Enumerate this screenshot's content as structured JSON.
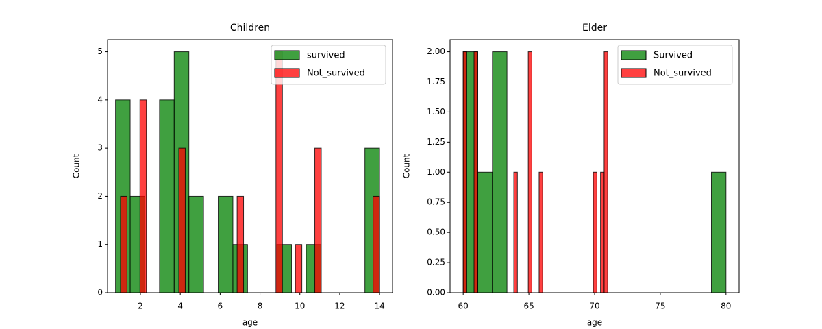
{
  "chart_data": [
    {
      "type": "histogram",
      "title": "Children",
      "xlabel": "age",
      "ylabel": "Count",
      "xlim": [
        0.35,
        14.65
      ],
      "ylim": [
        0,
        5.25
      ],
      "xticks": [
        2,
        4,
        6,
        8,
        10,
        12,
        14
      ],
      "yticks": [
        0,
        1,
        2,
        3,
        4,
        5
      ],
      "legend": "upper right",
      "series": [
        {
          "name": "survived",
          "color": "green",
          "bins": [
            0.75,
            1.486,
            2.222,
            2.958,
            3.694,
            4.431,
            5.167,
            5.903,
            6.639,
            7.375,
            8.111,
            8.847,
            9.583,
            10.319,
            11.056,
            11.792,
            12.528,
            13.264,
            14.0
          ],
          "values": [
            4,
            2,
            0,
            4,
            5,
            2,
            0,
            2,
            1,
            0,
            0,
            1,
            0,
            1,
            0,
            0,
            0,
            3
          ]
        },
        {
          "name": "Not_survived",
          "color": "red",
          "bins": [
            1,
            1.325,
            1.65,
            1.975,
            2.3,
            2.625,
            2.95,
            3.275,
            3.6,
            3.925,
            4.25,
            4.575,
            4.9,
            5.225,
            5.55,
            5.875,
            6.2,
            6.525,
            6.85,
            7.175,
            7.5,
            7.825,
            8.15,
            8.475,
            8.8,
            9.125,
            9.45,
            9.775,
            10.1,
            10.425,
            10.75,
            11.075,
            11.4,
            11.725,
            12.05,
            12.375,
            12.7,
            13.025,
            13.35,
            13.675,
            14
          ],
          "values": [
            2,
            0,
            0,
            4,
            0,
            0,
            0,
            0,
            0,
            3,
            0,
            0,
            0,
            0,
            0,
            0,
            0,
            0,
            2,
            0,
            0,
            0,
            0,
            0,
            5,
            0,
            0,
            1,
            0,
            0,
            3,
            0,
            0,
            0,
            0,
            0,
            0,
            0,
            0,
            2
          ]
        }
      ]
    },
    {
      "type": "histogram",
      "title": "Elder",
      "xlabel": "age",
      "ylabel": "Count",
      "xlim": [
        59,
        81
      ],
      "ylim": [
        0,
        2.1
      ],
      "xticks": [
        60,
        65,
        70,
        75,
        80
      ],
      "yticks": [
        {
          "value": 0,
          "label": "0.00"
        },
        {
          "value": 0.25,
          "label": "0.25"
        },
        {
          "value": 0.5,
          "label": "0.50"
        },
        {
          "value": 0.75,
          "label": "0.75"
        },
        {
          "value": 1,
          "label": "1.00"
        },
        {
          "value": 1.25,
          "label": "1.25"
        },
        {
          "value": 1.5,
          "label": "1.50"
        },
        {
          "value": 1.75,
          "label": "1.75"
        },
        {
          "value": 2,
          "label": "2.00"
        }
      ],
      "legend": "upper right",
      "series": [
        {
          "name": "Survived",
          "color": "green",
          "bins": [
            60,
            61.111,
            62.222,
            63.333,
            64.444,
            65.556,
            66.667,
            67.778,
            68.889,
            70,
            71.111,
            72.222,
            73.333,
            74.444,
            75.556,
            76.667,
            77.778,
            78.889,
            80
          ],
          "values": [
            2,
            1,
            2,
            0,
            0,
            0,
            0,
            0,
            0,
            0,
            0,
            0,
            0,
            0,
            0,
            0,
            0,
            1
          ]
        },
        {
          "name": "Not_survived",
          "color": "red",
          "bins": [
            60,
            60.275,
            60.55,
            60.825,
            61.1,
            61.375,
            61.65,
            61.925,
            62.2,
            62.475,
            62.75,
            63.025,
            63.3,
            63.575,
            63.85,
            64.125,
            64.4,
            64.675,
            64.95,
            65.225,
            65.5,
            65.775,
            66.05,
            66.325,
            66.6,
            66.875,
            67.15,
            67.425,
            67.7,
            67.975,
            68.25,
            68.525,
            68.8,
            69.075,
            69.35,
            69.625,
            69.9,
            70.175,
            70.45,
            70.725,
            71
          ],
          "values": [
            2,
            0,
            0,
            2,
            0,
            0,
            0,
            0,
            0,
            0,
            0,
            0,
            0,
            0,
            1,
            0,
            0,
            0,
            2,
            0,
            0,
            1,
            0,
            0,
            0,
            0,
            0,
            0,
            0,
            0,
            0,
            0,
            0,
            0,
            0,
            0,
            1,
            0,
            1,
            2
          ]
        }
      ]
    }
  ]
}
